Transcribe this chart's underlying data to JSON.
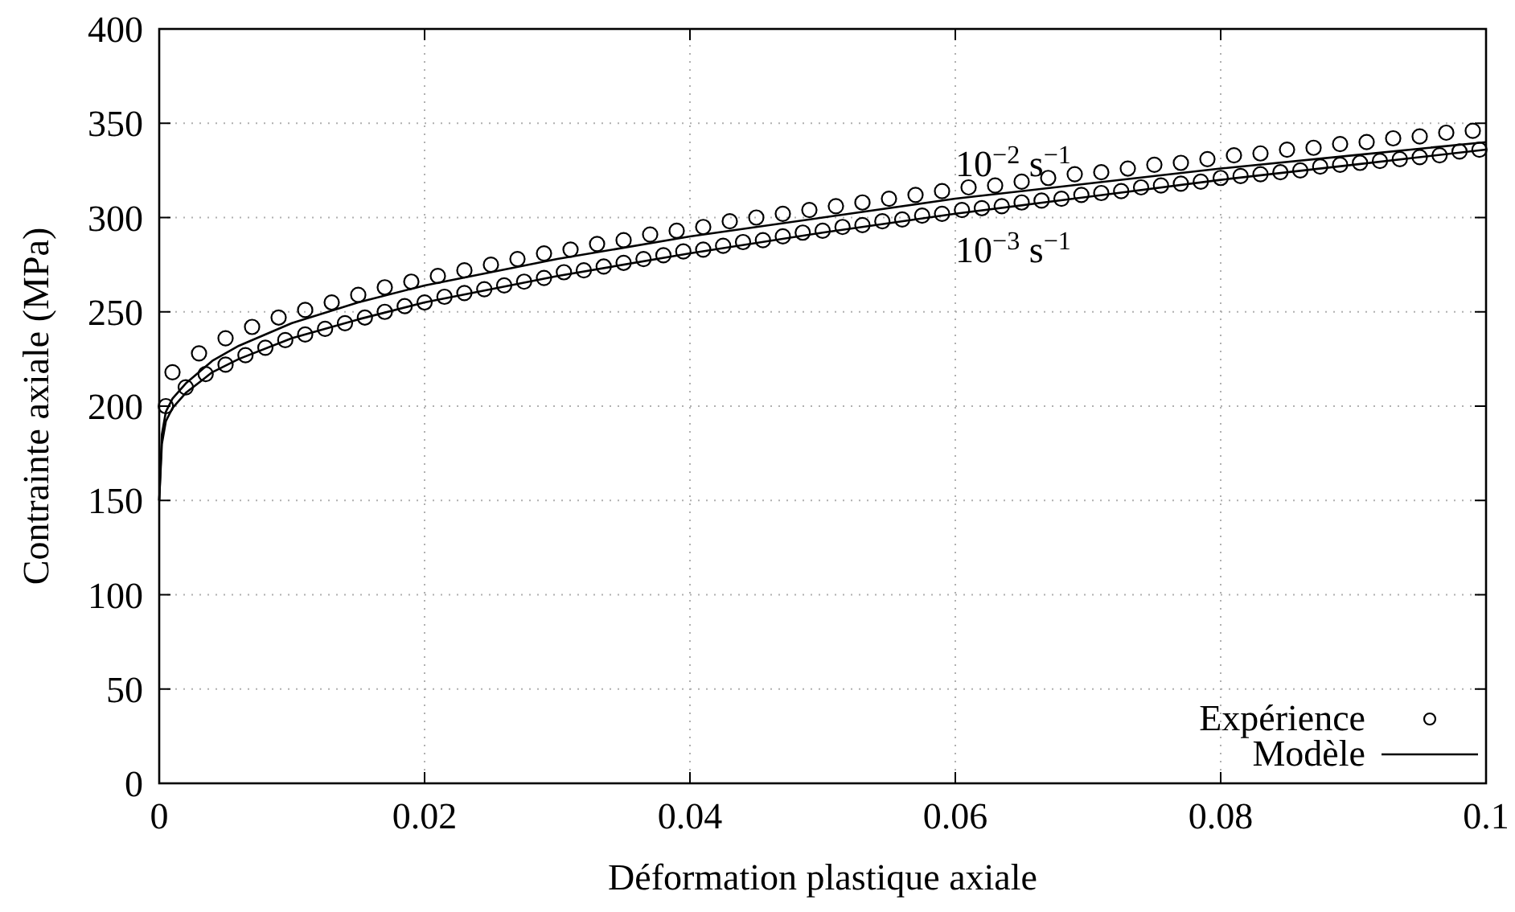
{
  "chart_data": {
    "type": "scatter",
    "xlabel": "Déformation plastique axiale",
    "ylabel": "Contrainte axiale (MPa)",
    "xlim": [
      0,
      0.1
    ],
    "ylim": [
      0,
      400
    ],
    "xticks": [
      0,
      0.02,
      0.04,
      0.06,
      0.08,
      0.1
    ],
    "yticks": [
      0,
      50,
      100,
      150,
      200,
      250,
      300,
      350,
      400
    ],
    "grid": true,
    "legend": "bottom right",
    "annotations": [
      {
        "text": "10$^{−2}$ s$^{−1}$",
        "x": 0.06,
        "y": 310
      },
      {
        "text": "10$^{−3}$ s$^{−1}$",
        "x": 0.06,
        "y": 302
      }
    ],
    "series": [
      {
        "name": "Expérience",
        "marker": "circle",
        "color": "#000000",
        "x": [
          0.001,
          0.003,
          0.005,
          0.007,
          0.009,
          0.011,
          0.013,
          0.015,
          0.017,
          0.019,
          0.021,
          0.023,
          0.025,
          0.027,
          0.029,
          0.031,
          0.033,
          0.035,
          0.037,
          0.039,
          0.041,
          0.043,
          0.045,
          0.047,
          0.049,
          0.051,
          0.053,
          0.055,
          0.057,
          0.059,
          0.061,
          0.063,
          0.065,
          0.067,
          0.069,
          0.071,
          0.073,
          0.075,
          0.077,
          0.079,
          0.081,
          0.083,
          0.085,
          0.087,
          0.089,
          0.091,
          0.093,
          0.095,
          0.097,
          0.099
        ],
        "values": [
          218,
          228,
          236,
          242,
          247,
          251,
          255,
          259,
          263,
          266,
          269,
          272,
          275,
          278,
          281,
          283,
          286,
          288,
          291,
          293,
          295,
          298,
          300,
          302,
          304,
          306,
          308,
          310,
          312,
          314,
          316,
          317,
          319,
          321,
          323,
          324,
          326,
          328,
          329,
          331,
          333,
          334,
          336,
          337,
          339,
          340,
          342,
          343,
          345,
          346
        ]
      },
      {
        "marker": "circle",
        "color": "#000000",
        "x": [
          0.0005,
          0.002,
          0.0035,
          0.005,
          0.0065,
          0.008,
          0.0095,
          0.011,
          0.0125,
          0.014,
          0.0155,
          0.017,
          0.0185,
          0.02,
          0.0215,
          0.023,
          0.0245,
          0.026,
          0.0275,
          0.029,
          0.0305,
          0.032,
          0.0335,
          0.035,
          0.0365,
          0.038,
          0.0395,
          0.041,
          0.0425,
          0.044,
          0.0455,
          0.047,
          0.0485,
          0.05,
          0.0515,
          0.053,
          0.0545,
          0.056,
          0.0575,
          0.059,
          0.0605,
          0.062,
          0.0635,
          0.065,
          0.0665,
          0.068,
          0.0695,
          0.071,
          0.0725,
          0.074,
          0.0755,
          0.077,
          0.0785,
          0.08,
          0.0815,
          0.083,
          0.0845,
          0.086,
          0.0875,
          0.089,
          0.0905,
          0.092,
          0.0935,
          0.095,
          0.0965,
          0.098,
          0.0995
        ],
        "values": [
          200,
          210,
          217,
          222,
          227,
          231,
          235,
          238,
          241,
          244,
          247,
          250,
          253,
          255,
          258,
          260,
          262,
          264,
          266,
          268,
          271,
          272,
          274,
          276,
          278,
          280,
          282,
          283,
          285,
          287,
          288,
          290,
          292,
          293,
          295,
          296,
          298,
          299,
          301,
          302,
          304,
          305,
          306,
          308,
          309,
          310,
          312,
          313,
          314,
          316,
          317,
          318,
          319,
          321,
          322,
          323,
          324,
          325,
          327,
          328,
          329,
          330,
          331,
          332,
          333,
          335,
          336
        ]
      },
      {
        "name": "Modèle",
        "type": "line",
        "color": "#000000",
        "x": [
          0,
          0.0002,
          0.0005,
          0.001,
          0.002,
          0.004,
          0.006,
          0.01,
          0.015,
          0.02,
          0.03,
          0.04,
          0.05,
          0.06,
          0.07,
          0.08,
          0.09,
          0.1
        ],
        "values": [
          150,
          185,
          197,
          204,
          212,
          224,
          232,
          244,
          255,
          264,
          278,
          290,
          300,
          310,
          318,
          326,
          333,
          340
        ]
      },
      {
        "type": "line",
        "color": "#000000",
        "x": [
          0,
          0.0002,
          0.0005,
          0.001,
          0.002,
          0.004,
          0.006,
          0.01,
          0.015,
          0.02,
          0.03,
          0.04,
          0.05,
          0.06,
          0.07,
          0.08,
          0.09,
          0.1
        ],
        "values": [
          150,
          180,
          192,
          199,
          207,
          218,
          225,
          236,
          246,
          255,
          269,
          281,
          292,
          302,
          311,
          320,
          328,
          336
        ]
      }
    ]
  }
}
